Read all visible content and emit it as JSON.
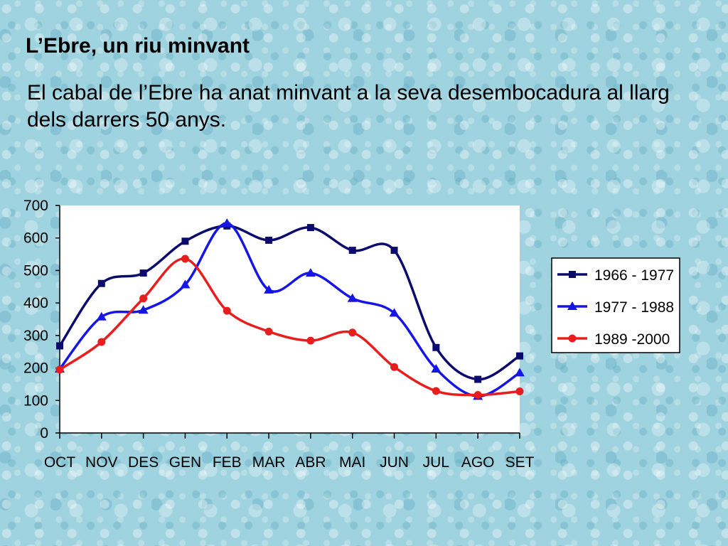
{
  "slide": {
    "title": "L’Ebre, un riu minvant",
    "text": "El cabal de l’Ebre ha anat minvant a la seva desembocadura al llarg dels darrers 50 anys."
  },
  "chart_data": {
    "type": "line",
    "title": "",
    "xlabel": "",
    "ylabel": "",
    "categories": [
      "OCT",
      "NOV",
      "DES",
      "GEN",
      "FEB",
      "MAR",
      "ABR",
      "MAI",
      "JUN",
      "JUL",
      "AGO",
      "SET"
    ],
    "ylim": [
      0,
      700
    ],
    "yticks": [
      0,
      100,
      200,
      300,
      400,
      500,
      600,
      700
    ],
    "grid": false,
    "legend_position": "right",
    "plot_background": "#ffffff",
    "series": [
      {
        "name": "1966 - 1977",
        "color": "#0b0b6e",
        "marker": "square",
        "values": [
          268,
          460,
          492,
          590,
          637,
          593,
          632,
          562,
          562,
          263,
          165,
          237
        ]
      },
      {
        "name": "1977 - 1988",
        "color": "#1515e6",
        "marker": "triangle",
        "values": [
          197,
          357,
          378,
          456,
          645,
          440,
          492,
          414,
          369,
          197,
          113,
          185
        ]
      },
      {
        "name": "1989 -2000",
        "color": "#e81e1e",
        "marker": "circle",
        "values": [
          195,
          280,
          414,
          536,
          376,
          312,
          284,
          309,
          203,
          129,
          117,
          128
        ]
      }
    ]
  }
}
